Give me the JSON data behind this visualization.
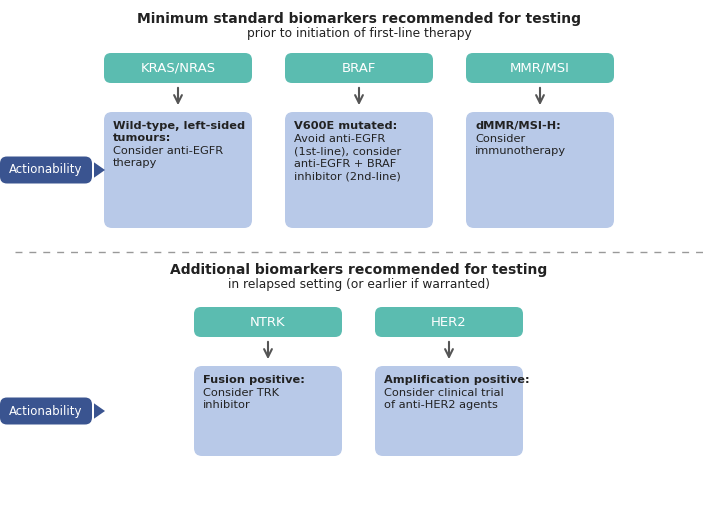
{
  "bg_color": "#ffffff",
  "teal_box_color": "#5bbcb0",
  "light_blue_box_color": "#b8c9e8",
  "dark_blue_btn_color": "#3a5490",
  "title1_line1": "Minimum standard biomarkers recommended for testing",
  "title1_line2": "prior to initiation of first-line therapy",
  "title2_line1": "Additional biomarkers recommended for testing",
  "title2_line2": "in relapsed setting (or earlier if warranted)",
  "top_biomarkers": [
    "KRAS/NRAS",
    "BRAF",
    "MMR/MSI"
  ],
  "top_actionability": [
    {
      "bold": "Wild-type, left-sided\ntumours:",
      "normal": "Consider anti-EGFR\ntherapy"
    },
    {
      "bold": "V600E mutated:",
      "normal": "Avoid anti-EGFR\n(1st-line), consider\nanti-EGFR + BRAF\ninhibitor (2nd-line)"
    },
    {
      "bold": "dMMR/MSI-H:",
      "normal": "Consider\nimmunotherapy"
    }
  ],
  "bottom_biomarkers": [
    "NTRK",
    "HER2"
  ],
  "bottom_actionability": [
    {
      "bold": "Fusion positive:",
      "normal": "Consider TRK\ninhibitor"
    },
    {
      "bold": "Amplification positive:",
      "normal": "Consider clinical trial\nof anti-HER2 agents"
    }
  ],
  "actionability_label": "Actionability",
  "teal_box_color_light": "#5bbcb0",
  "arrow_color": "#555555",
  "divider_color": "#999999",
  "text_color": "#222222",
  "white": "#ffffff"
}
